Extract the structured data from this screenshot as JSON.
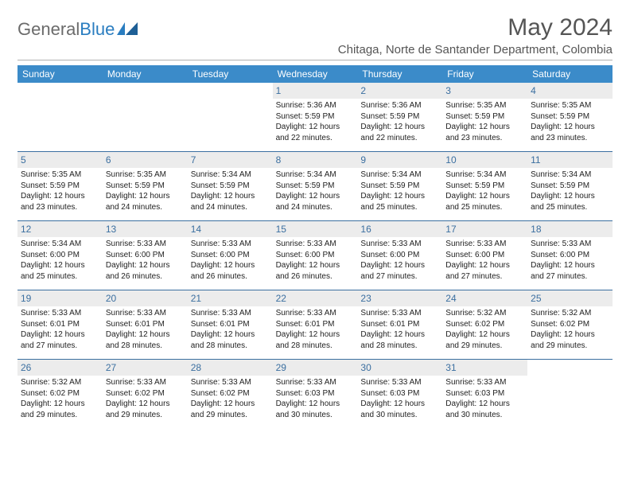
{
  "brand": {
    "part1": "General",
    "part2": "Blue"
  },
  "title": "May 2024",
  "location": "Chitaga, Norte de Santander Department, Colombia",
  "colors": {
    "header_bg": "#3b8bc9",
    "header_text": "#ffffff",
    "daynum_bg": "#ececec",
    "daynum_text": "#3b6fa0",
    "rule": "#3b6fa0",
    "brand_gray": "#6b6b6b",
    "brand_blue": "#2a7dc0"
  },
  "day_names": [
    "Sunday",
    "Monday",
    "Tuesday",
    "Wednesday",
    "Thursday",
    "Friday",
    "Saturday"
  ],
  "weeks": [
    [
      {
        "n": "",
        "lines": []
      },
      {
        "n": "",
        "lines": []
      },
      {
        "n": "",
        "lines": []
      },
      {
        "n": "1",
        "lines": [
          "Sunrise: 5:36 AM",
          "Sunset: 5:59 PM",
          "Daylight: 12 hours",
          "and 22 minutes."
        ]
      },
      {
        "n": "2",
        "lines": [
          "Sunrise: 5:36 AM",
          "Sunset: 5:59 PM",
          "Daylight: 12 hours",
          "and 22 minutes."
        ]
      },
      {
        "n": "3",
        "lines": [
          "Sunrise: 5:35 AM",
          "Sunset: 5:59 PM",
          "Daylight: 12 hours",
          "and 23 minutes."
        ]
      },
      {
        "n": "4",
        "lines": [
          "Sunrise: 5:35 AM",
          "Sunset: 5:59 PM",
          "Daylight: 12 hours",
          "and 23 minutes."
        ]
      }
    ],
    [
      {
        "n": "5",
        "lines": [
          "Sunrise: 5:35 AM",
          "Sunset: 5:59 PM",
          "Daylight: 12 hours",
          "and 23 minutes."
        ]
      },
      {
        "n": "6",
        "lines": [
          "Sunrise: 5:35 AM",
          "Sunset: 5:59 PM",
          "Daylight: 12 hours",
          "and 24 minutes."
        ]
      },
      {
        "n": "7",
        "lines": [
          "Sunrise: 5:34 AM",
          "Sunset: 5:59 PM",
          "Daylight: 12 hours",
          "and 24 minutes."
        ]
      },
      {
        "n": "8",
        "lines": [
          "Sunrise: 5:34 AM",
          "Sunset: 5:59 PM",
          "Daylight: 12 hours",
          "and 24 minutes."
        ]
      },
      {
        "n": "9",
        "lines": [
          "Sunrise: 5:34 AM",
          "Sunset: 5:59 PM",
          "Daylight: 12 hours",
          "and 25 minutes."
        ]
      },
      {
        "n": "10",
        "lines": [
          "Sunrise: 5:34 AM",
          "Sunset: 5:59 PM",
          "Daylight: 12 hours",
          "and 25 minutes."
        ]
      },
      {
        "n": "11",
        "lines": [
          "Sunrise: 5:34 AM",
          "Sunset: 5:59 PM",
          "Daylight: 12 hours",
          "and 25 minutes."
        ]
      }
    ],
    [
      {
        "n": "12",
        "lines": [
          "Sunrise: 5:34 AM",
          "Sunset: 6:00 PM",
          "Daylight: 12 hours",
          "and 25 minutes."
        ]
      },
      {
        "n": "13",
        "lines": [
          "Sunrise: 5:33 AM",
          "Sunset: 6:00 PM",
          "Daylight: 12 hours",
          "and 26 minutes."
        ]
      },
      {
        "n": "14",
        "lines": [
          "Sunrise: 5:33 AM",
          "Sunset: 6:00 PM",
          "Daylight: 12 hours",
          "and 26 minutes."
        ]
      },
      {
        "n": "15",
        "lines": [
          "Sunrise: 5:33 AM",
          "Sunset: 6:00 PM",
          "Daylight: 12 hours",
          "and 26 minutes."
        ]
      },
      {
        "n": "16",
        "lines": [
          "Sunrise: 5:33 AM",
          "Sunset: 6:00 PM",
          "Daylight: 12 hours",
          "and 27 minutes."
        ]
      },
      {
        "n": "17",
        "lines": [
          "Sunrise: 5:33 AM",
          "Sunset: 6:00 PM",
          "Daylight: 12 hours",
          "and 27 minutes."
        ]
      },
      {
        "n": "18",
        "lines": [
          "Sunrise: 5:33 AM",
          "Sunset: 6:00 PM",
          "Daylight: 12 hours",
          "and 27 minutes."
        ]
      }
    ],
    [
      {
        "n": "19",
        "lines": [
          "Sunrise: 5:33 AM",
          "Sunset: 6:01 PM",
          "Daylight: 12 hours",
          "and 27 minutes."
        ]
      },
      {
        "n": "20",
        "lines": [
          "Sunrise: 5:33 AM",
          "Sunset: 6:01 PM",
          "Daylight: 12 hours",
          "and 28 minutes."
        ]
      },
      {
        "n": "21",
        "lines": [
          "Sunrise: 5:33 AM",
          "Sunset: 6:01 PM",
          "Daylight: 12 hours",
          "and 28 minutes."
        ]
      },
      {
        "n": "22",
        "lines": [
          "Sunrise: 5:33 AM",
          "Sunset: 6:01 PM",
          "Daylight: 12 hours",
          "and 28 minutes."
        ]
      },
      {
        "n": "23",
        "lines": [
          "Sunrise: 5:33 AM",
          "Sunset: 6:01 PM",
          "Daylight: 12 hours",
          "and 28 minutes."
        ]
      },
      {
        "n": "24",
        "lines": [
          "Sunrise: 5:32 AM",
          "Sunset: 6:02 PM",
          "Daylight: 12 hours",
          "and 29 minutes."
        ]
      },
      {
        "n": "25",
        "lines": [
          "Sunrise: 5:32 AM",
          "Sunset: 6:02 PM",
          "Daylight: 12 hours",
          "and 29 minutes."
        ]
      }
    ],
    [
      {
        "n": "26",
        "lines": [
          "Sunrise: 5:32 AM",
          "Sunset: 6:02 PM",
          "Daylight: 12 hours",
          "and 29 minutes."
        ]
      },
      {
        "n": "27",
        "lines": [
          "Sunrise: 5:33 AM",
          "Sunset: 6:02 PM",
          "Daylight: 12 hours",
          "and 29 minutes."
        ]
      },
      {
        "n": "28",
        "lines": [
          "Sunrise: 5:33 AM",
          "Sunset: 6:02 PM",
          "Daylight: 12 hours",
          "and 29 minutes."
        ]
      },
      {
        "n": "29",
        "lines": [
          "Sunrise: 5:33 AM",
          "Sunset: 6:03 PM",
          "Daylight: 12 hours",
          "and 30 minutes."
        ]
      },
      {
        "n": "30",
        "lines": [
          "Sunrise: 5:33 AM",
          "Sunset: 6:03 PM",
          "Daylight: 12 hours",
          "and 30 minutes."
        ]
      },
      {
        "n": "31",
        "lines": [
          "Sunrise: 5:33 AM",
          "Sunset: 6:03 PM",
          "Daylight: 12 hours",
          "and 30 minutes."
        ]
      },
      {
        "n": "",
        "lines": []
      }
    ]
  ]
}
